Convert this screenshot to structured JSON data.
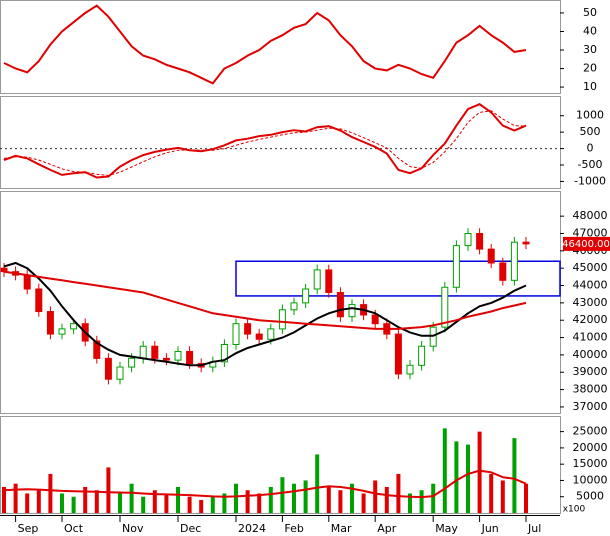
{
  "chart_data": [
    {
      "type": "line",
      "ylim": [
        6.8,
        57
      ],
      "yticks": [
        50,
        40,
        30,
        20,
        10
      ],
      "series": [
        {
          "color": "#e00000",
          "values": [
            23,
            20,
            18,
            24,
            33,
            40,
            45,
            50,
            54,
            48,
            40,
            32,
            27,
            25,
            22,
            20,
            18,
            15,
            12,
            20,
            23,
            27,
            30,
            35,
            38,
            42,
            44,
            50,
            46,
            38,
            32,
            24,
            20,
            19,
            22,
            20,
            17,
            15,
            24,
            34,
            38,
            43,
            38,
            34,
            29,
            30
          ]
        }
      ]
    },
    {
      "type": "line",
      "ylim": [
        -1200,
        1600
      ],
      "yticks": [
        1000,
        500,
        0,
        -500,
        -1000
      ],
      "zero_line": true,
      "series": [
        {
          "color": "#e00000",
          "values": [
            -350,
            -220,
            -300,
            -480,
            -650,
            -800,
            -750,
            -720,
            -880,
            -850,
            -550,
            -350,
            -200,
            -100,
            -30,
            20,
            -50,
            -80,
            -20,
            100,
            250,
            300,
            380,
            420,
            500,
            560,
            520,
            650,
            680,
            550,
            350,
            200,
            50,
            -150,
            -650,
            -750,
            -600,
            -200,
            150,
            700,
            1200,
            1350,
            1100,
            700,
            550,
            700
          ]
        },
        {
          "color": "#e00000",
          "dashed": true,
          "values": [
            -300,
            -250,
            -260,
            -350,
            -480,
            -620,
            -700,
            -720,
            -780,
            -820,
            -720,
            -560,
            -400,
            -250,
            -130,
            -50,
            -40,
            -50,
            -50,
            0,
            100,
            200,
            280,
            350,
            420,
            480,
            500,
            560,
            620,
            600,
            480,
            330,
            180,
            20,
            -300,
            -550,
            -600,
            -420,
            -100,
            300,
            800,
            1100,
            1150,
            900,
            700,
            680
          ]
        }
      ]
    },
    {
      "type": "candlestick",
      "ylim": [
        36650,
        49450
      ],
      "yticks": [
        48000,
        47000,
        46000,
        45000,
        44000,
        43000,
        42000,
        41000,
        40000,
        39000,
        38000,
        37000
      ],
      "up_color": "#00a000",
      "down_color": "#e00000",
      "open": [
        45000,
        44800,
        44600,
        43800,
        42500,
        41200,
        41500,
        41800,
        40800,
        39800,
        38600,
        39300,
        39800,
        40500,
        39800,
        39700,
        40200,
        39500,
        39300,
        39600,
        40600,
        41800,
        41200,
        40900,
        41500,
        42600,
        43000,
        43800,
        44900,
        43600,
        42200,
        42900,
        42300,
        41800,
        41200,
        38900,
        39400,
        40500,
        41600,
        43900,
        46300,
        47000,
        46100,
        45300,
        44300,
        46500
      ],
      "high": [
        45300,
        45100,
        44900,
        44100,
        42800,
        41800,
        42100,
        42100,
        41100,
        40100,
        39600,
        40100,
        40800,
        40800,
        40100,
        40500,
        40500,
        39800,
        39900,
        40900,
        42100,
        42100,
        41500,
        41800,
        42900,
        43300,
        44100,
        45200,
        45200,
        43900,
        43200,
        43200,
        42600,
        42100,
        41500,
        39700,
        40800,
        41900,
        44200,
        46600,
        47300,
        47300,
        46400,
        45600,
        46800,
        46800
      ],
      "low": [
        44500,
        44300,
        43500,
        42200,
        40900,
        40900,
        41200,
        40500,
        39500,
        38300,
        38300,
        39000,
        39500,
        39500,
        39400,
        39400,
        39200,
        39000,
        39000,
        39300,
        40300,
        40900,
        40600,
        40600,
        41200,
        42300,
        42700,
        43500,
        43300,
        41900,
        41900,
        42000,
        41500,
        40900,
        38600,
        38600,
        39100,
        40200,
        41300,
        43600,
        46000,
        45800,
        45000,
        44000,
        44000,
        46100
      ],
      "close": [
        44800,
        44600,
        43800,
        42500,
        41200,
        41500,
        41800,
        40800,
        39800,
        38600,
        39300,
        39800,
        40500,
        39800,
        39700,
        40200,
        39500,
        39300,
        39600,
        40600,
        41800,
        41200,
        40900,
        41500,
        42600,
        43000,
        43800,
        44900,
        43600,
        42200,
        42900,
        42300,
        41800,
        41200,
        38900,
        39400,
        40500,
        41600,
        43900,
        46300,
        47000,
        46100,
        45300,
        44300,
        46500,
        46400
      ],
      "series": [
        {
          "color": "#000000",
          "values": [
            45100,
            45300,
            45000,
            44400,
            43700,
            42800,
            42000,
            41300,
            40700,
            40300,
            40000,
            39900,
            39800,
            39700,
            39600,
            39500,
            39400,
            39400,
            39600,
            39700,
            40100,
            40400,
            40600,
            40800,
            41000,
            41300,
            41700,
            42100,
            42400,
            42600,
            42700,
            42600,
            42400,
            42000,
            41600,
            41300,
            41100,
            41100,
            41400,
            41900,
            42400,
            42800,
            43000,
            43300,
            43700,
            44000
          ]
        },
        {
          "color": "#e00000",
          "values": [
            44800,
            44700,
            44600,
            44500,
            44400,
            44300,
            44200,
            44100,
            44000,
            43900,
            43800,
            43700,
            43600,
            43400,
            43200,
            43000,
            42800,
            42600,
            42400,
            42300,
            42200,
            42100,
            42000,
            41950,
            41900,
            41850,
            41800,
            41750,
            41700,
            41650,
            41600,
            41550,
            41500,
            41500,
            41500,
            41550,
            41600,
            41700,
            41850,
            42000,
            42200,
            42350,
            42500,
            42700,
            42850,
            43000
          ]
        }
      ],
      "zone": {
        "start": 20,
        "low": 43400,
        "high": 45400,
        "color": "#0000dd"
      },
      "last_value": 46400,
      "last_value_label": "46400.00"
    },
    {
      "type": "bar",
      "ylim": [
        0,
        29800
      ],
      "yticks": [
        25000,
        20000,
        15000,
        10000,
        5000
      ],
      "unit_label": "x100",
      "categories": [
        null,
        "Sep",
        null,
        null,
        null,
        "Oct",
        null,
        null,
        null,
        null,
        "Nov",
        null,
        null,
        null,
        null,
        "Dec",
        null,
        null,
        null,
        null,
        "2024",
        null,
        null,
        null,
        "Feb",
        null,
        null,
        null,
        "Mar",
        null,
        null,
        null,
        "Apr",
        null,
        null,
        null,
        null,
        "May",
        null,
        null,
        null,
        "Jun",
        null,
        null,
        null,
        "Jul"
      ],
      "values": [
        8000,
        9000,
        6000,
        7000,
        12000,
        6000,
        5000,
        8000,
        7000,
        14000,
        6000,
        9000,
        5000,
        7000,
        6000,
        8000,
        5000,
        4000,
        5000,
        6000,
        9000,
        7000,
        6000,
        8000,
        11000,
        9000,
        10000,
        18000,
        8000,
        7000,
        9000,
        6000,
        10000,
        8000,
        12000,
        6000,
        7000,
        9000,
        26000,
        22000,
        21000,
        25000,
        12000,
        10000,
        23000,
        9000
      ],
      "series": [
        {
          "color": "#e00000",
          "values": [
            7000,
            7200,
            7300,
            7200,
            7000,
            6800,
            6700,
            6600,
            6500,
            6400,
            6300,
            6200,
            6000,
            5800,
            5700,
            5600,
            5500,
            5300,
            5100,
            5000,
            5100,
            5300,
            5500,
            5800,
            6200,
            6700,
            7200,
            7800,
            8200,
            8000,
            7500,
            6800,
            6000,
            5500,
            5200,
            5000,
            4900,
            5200,
            7500,
            10000,
            12000,
            13000,
            12500,
            11000,
            10500,
            9000
          ]
        }
      ]
    }
  ]
}
